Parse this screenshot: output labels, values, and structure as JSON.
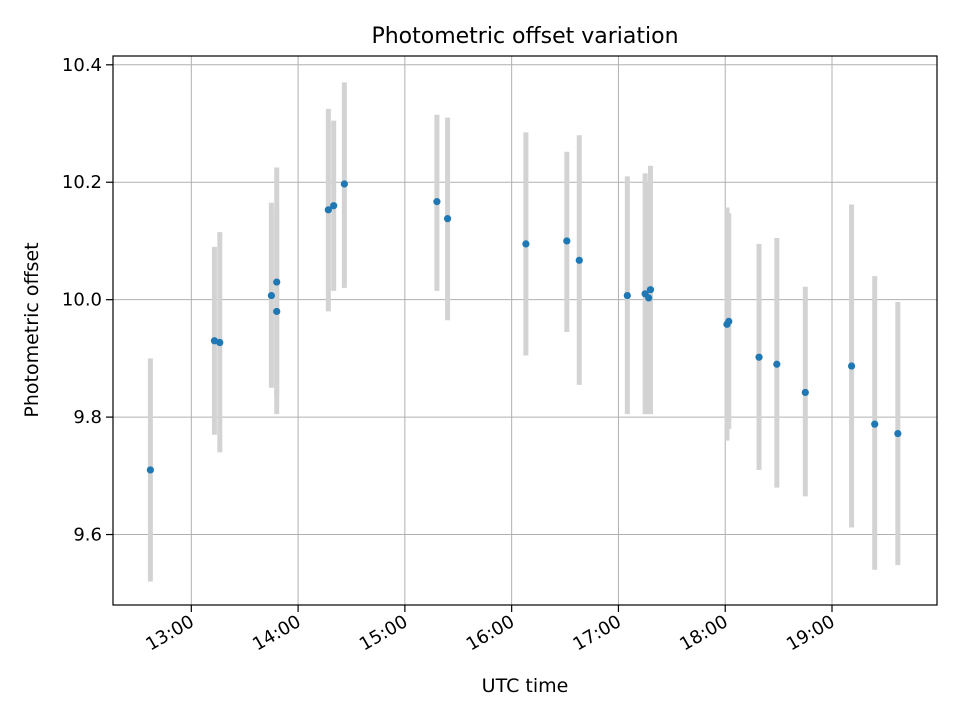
{
  "chart_data": {
    "type": "scatter",
    "title": "Photometric offset variation",
    "xlabel": "UTC time",
    "ylabel": "Photometric offset",
    "x_ticks": [
      "13:00",
      "14:00",
      "15:00",
      "16:00",
      "17:00",
      "18:00",
      "19:00"
    ],
    "y_ticks": [
      "9.6",
      "9.8",
      "10.0",
      "10.2",
      "10.4"
    ],
    "x_range": [
      "12:16",
      "19:59"
    ],
    "y_range": [
      9.48,
      10.415
    ],
    "grid": true,
    "colors": {
      "point": "#1f77b4",
      "error_bar": "#d3d3d3",
      "grid": "#b0b0b0"
    },
    "points": [
      {
        "x": "12:37",
        "y": 9.71,
        "low": 9.52,
        "high": 9.9
      },
      {
        "x": "13:13",
        "y": 9.93,
        "low": 9.77,
        "high": 10.09
      },
      {
        "x": "13:16",
        "y": 9.927,
        "low": 9.74,
        "high": 10.115
      },
      {
        "x": "13:45",
        "y": 10.007,
        "low": 9.85,
        "high": 10.165
      },
      {
        "x": "13:48",
        "y": 9.98,
        "low": 9.805,
        "high": 10.155
      },
      {
        "x": "13:48",
        "y": 10.03,
        "low": 9.835,
        "high": 10.225
      },
      {
        "x": "14:17",
        "y": 10.153,
        "low": 9.98,
        "high": 10.325
      },
      {
        "x": "14:20",
        "y": 10.16,
        "low": 10.015,
        "high": 10.305
      },
      {
        "x": "14:26",
        "y": 10.197,
        "low": 10.02,
        "high": 10.37
      },
      {
        "x": "15:18",
        "y": 10.167,
        "low": 10.015,
        "high": 10.315
      },
      {
        "x": "15:24",
        "y": 10.138,
        "low": 9.965,
        "high": 10.31
      },
      {
        "x": "16:08",
        "y": 10.095,
        "low": 9.905,
        "high": 10.285
      },
      {
        "x": "16:31",
        "y": 10.1,
        "low": 9.945,
        "high": 10.252
      },
      {
        "x": "16:38",
        "y": 10.067,
        "low": 9.855,
        "high": 10.28
      },
      {
        "x": "17:05",
        "y": 10.007,
        "low": 9.805,
        "high": 10.21
      },
      {
        "x": "17:15",
        "y": 10.01,
        "low": 9.805,
        "high": 10.215
      },
      {
        "x": "17:17",
        "y": 10.003,
        "low": 9.805,
        "high": 10.2
      },
      {
        "x": "17:18",
        "y": 10.017,
        "low": 9.805,
        "high": 10.228
      },
      {
        "x": "18:01",
        "y": 9.958,
        "low": 9.76,
        "high": 10.157
      },
      {
        "x": "18:02",
        "y": 9.963,
        "low": 9.78,
        "high": 10.147
      },
      {
        "x": "18:19",
        "y": 9.902,
        "low": 9.71,
        "high": 10.095
      },
      {
        "x": "18:29",
        "y": 9.89,
        "low": 9.68,
        "high": 10.105
      },
      {
        "x": "18:45",
        "y": 9.842,
        "low": 9.665,
        "high": 10.022
      },
      {
        "x": "19:11",
        "y": 9.887,
        "low": 9.612,
        "high": 10.162
      },
      {
        "x": "19:24",
        "y": 9.788,
        "low": 9.54,
        "high": 10.04
      },
      {
        "x": "19:37",
        "y": 9.772,
        "low": 9.548,
        "high": 9.996
      }
    ]
  }
}
